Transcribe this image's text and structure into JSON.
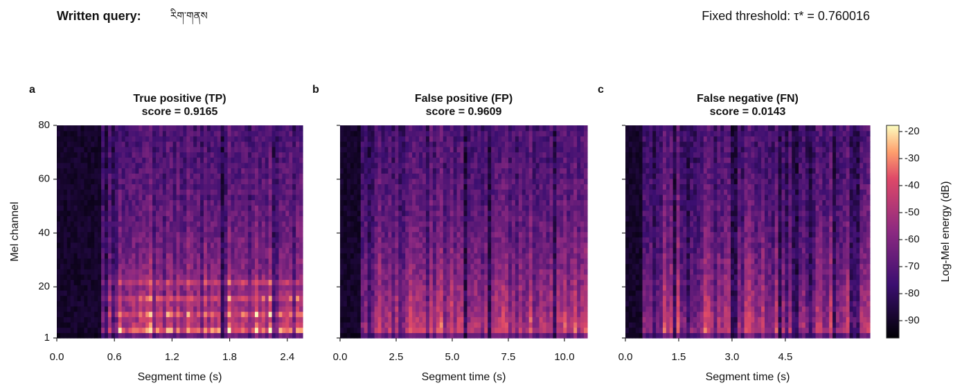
{
  "header": {
    "query_label": "Written query:",
    "query": "རིག་གནས",
    "threshold": "Fixed threshold: τ* = 0.760016"
  },
  "chart_data": [
    {
      "type": "heatmap",
      "panel": "a",
      "title": "True positive (TP)",
      "subtitle": "score = 0.9165",
      "x_label": "Segment time (s)",
      "y_label": "Mel channel",
      "xlim": [
        0,
        2.56
      ],
      "xticks": [
        {
          "value": 0,
          "label": "0.0"
        },
        0.6,
        1.2,
        1.8,
        2.4
      ],
      "ylim": [
        1,
        80
      ],
      "yticks": [
        1,
        20,
        40,
        60,
        80
      ],
      "ytick_labels": true
    },
    {
      "type": "heatmap",
      "panel": "b",
      "title": "False positive (FP)",
      "subtitle": "score = 0.9609",
      "x_label": "Segment time (s)",
      "xlim": [
        0,
        11.02
      ],
      "xticks": [
        {
          "value": 0,
          "label": "0.0"
        },
        2.5,
        {
          "value": 5,
          "label": "5.0"
        },
        7.5,
        {
          "value": 10,
          "label": "10.0"
        }
      ],
      "ylim": [
        1,
        80
      ],
      "yticks": [
        1,
        20,
        40,
        60,
        80
      ],
      "ytick_labels": false
    },
    {
      "type": "heatmap",
      "panel": "c",
      "title": "False negative (FN)",
      "subtitle": "score = 0.0143",
      "x_label": "Segment time (s)",
      "xlim": [
        0,
        6.88
      ],
      "xticks": [
        {
          "value": 0,
          "label": "0.0"
        },
        1.5,
        {
          "value": 3,
          "label": "3.0"
        },
        4.5
      ],
      "ylim": [
        1,
        80
      ],
      "yticks": [
        1,
        20,
        40,
        60,
        80
      ],
      "ytick_labels": false
    }
  ],
  "colorbar": {
    "label": "Log-Mel energy (dB)",
    "lim": [
      -96.4,
      -17.7
    ],
    "ticks": [
      -20,
      -30,
      -40,
      -50,
      -60,
      -70,
      -80,
      -90
    ],
    "colormap": [
      "#000004",
      "#3b0f70",
      "#8c2981",
      "#de4968",
      "#fe9f6d",
      "#fcfdbf"
    ]
  }
}
